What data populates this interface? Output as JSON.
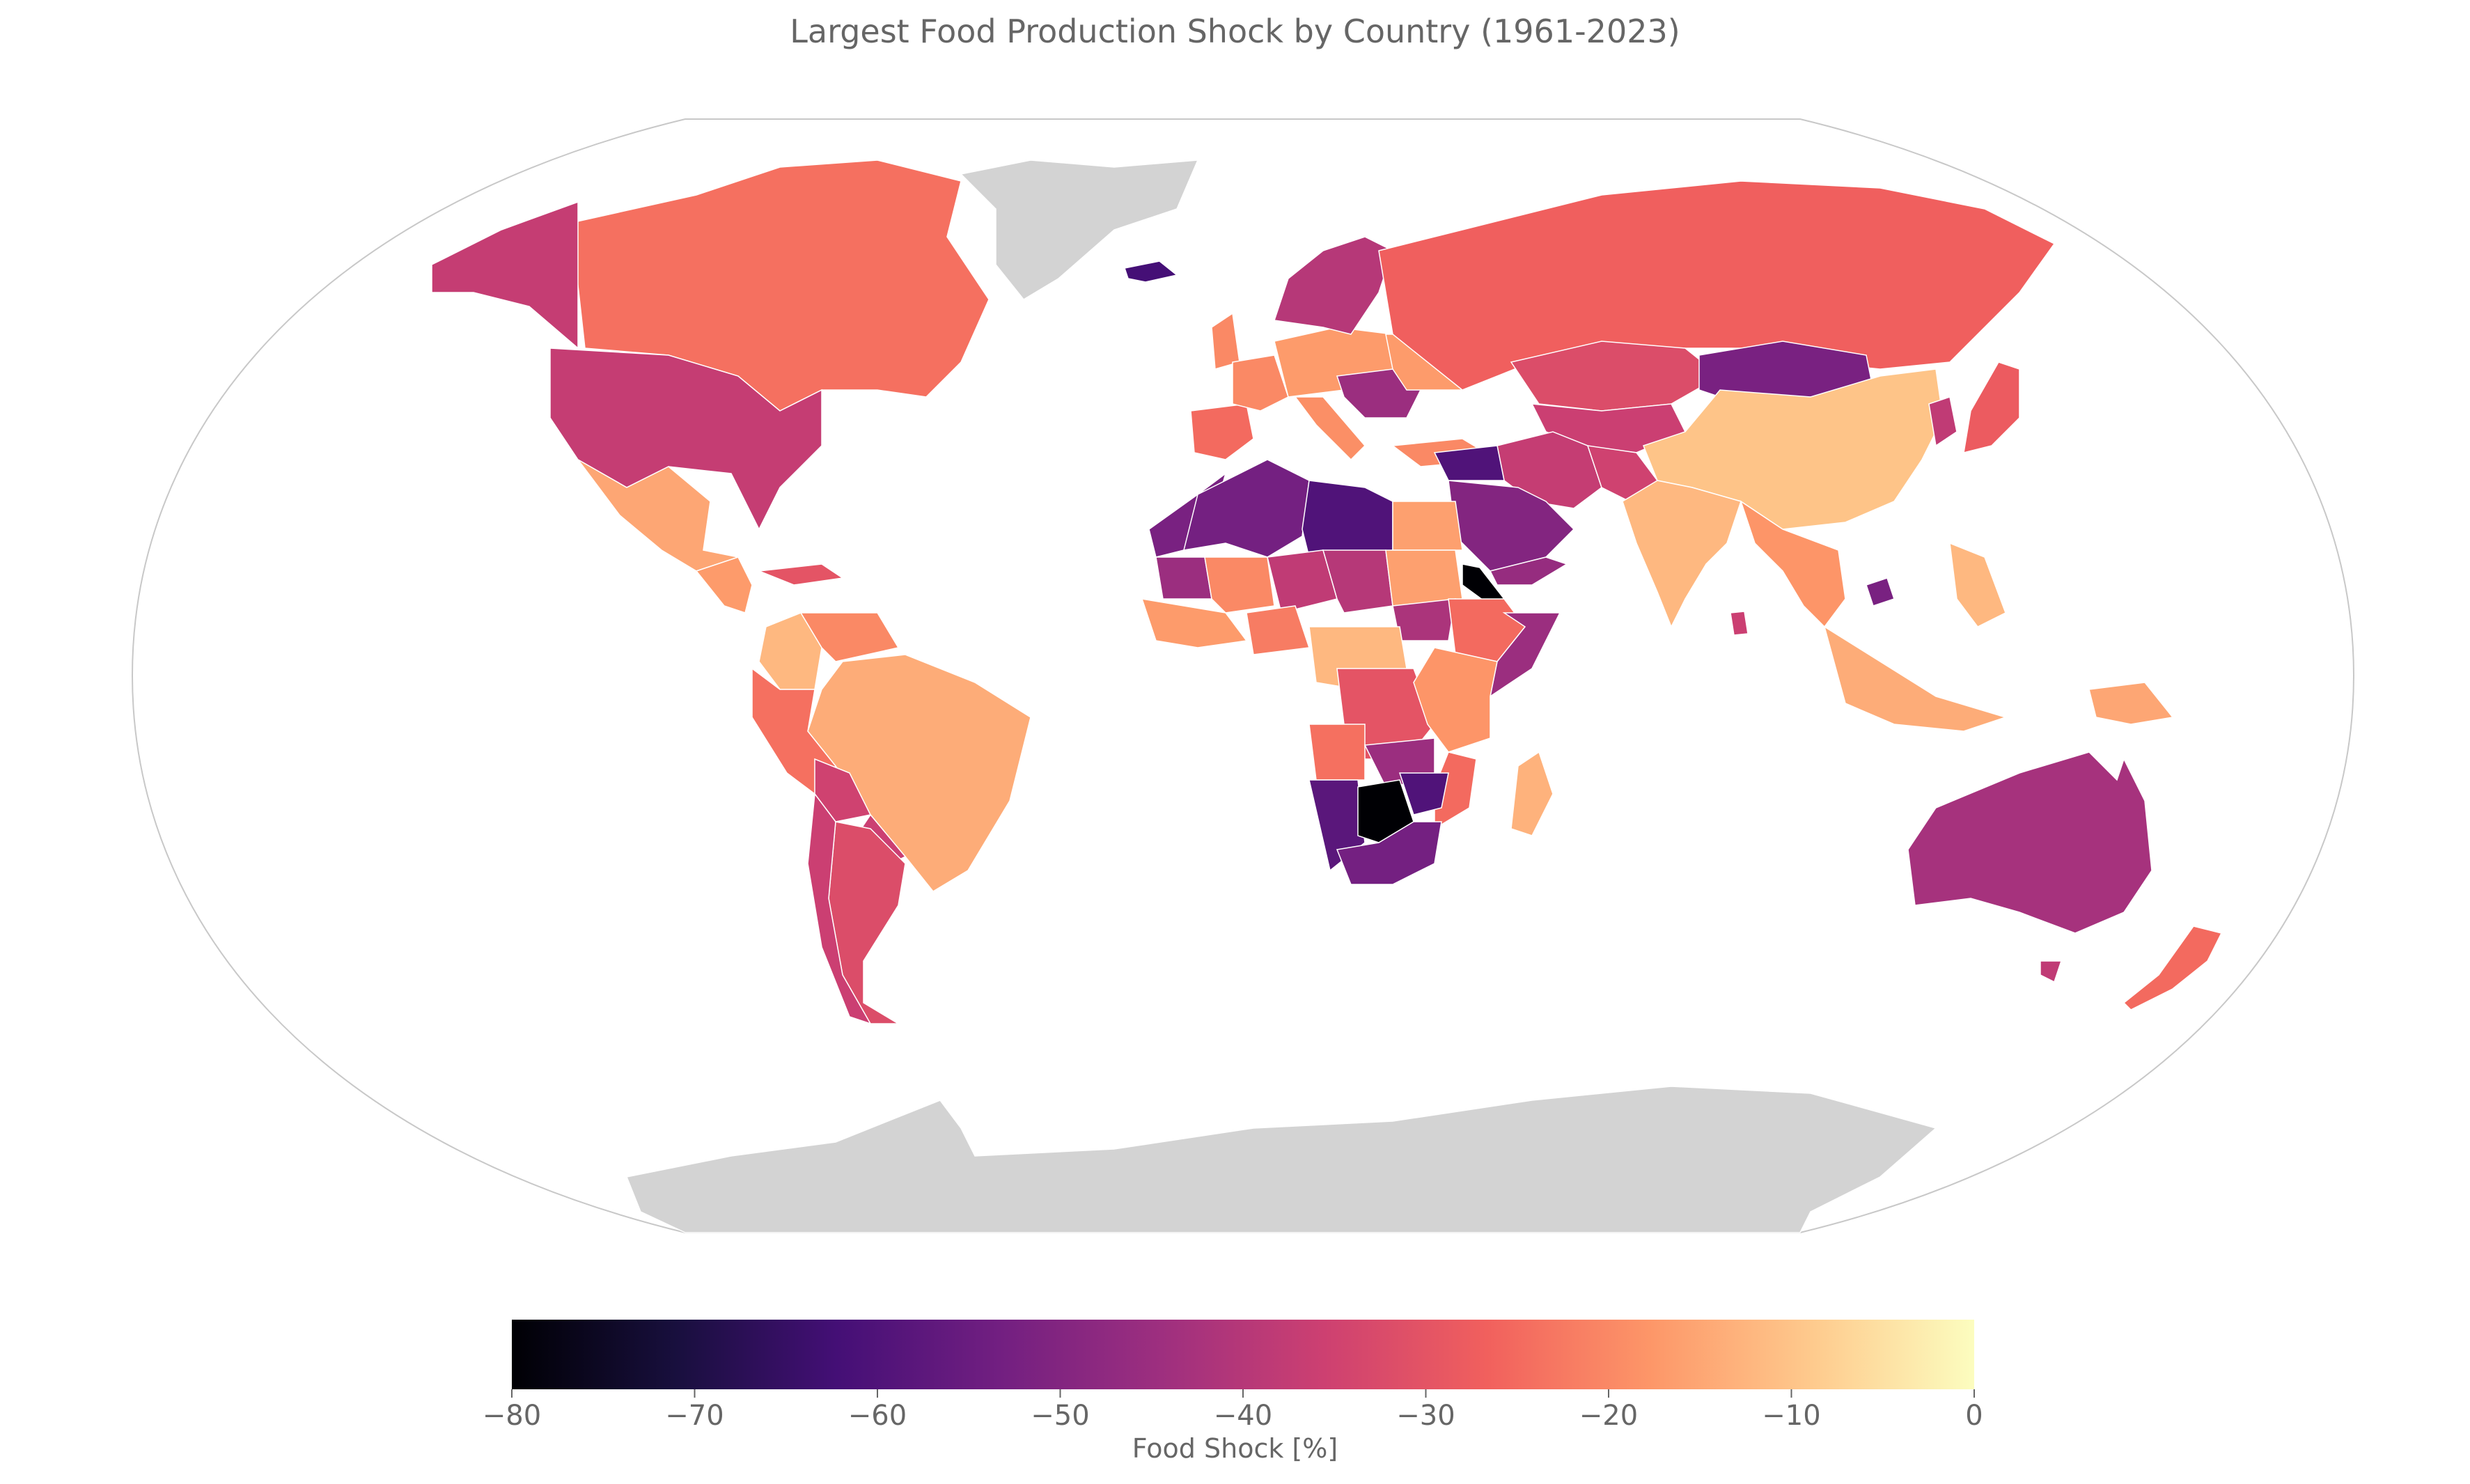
{
  "title": "Largest Food Production Shock by Country (1961-2023)",
  "colors": {
    "no_data": "#d3d3d3",
    "frame": "#c8c8c8",
    "text": "#666666",
    "colormap": "magma",
    "colormap_stops": [
      "#000004",
      "#180f3d",
      "#440f76",
      "#721f81",
      "#9e2f7f",
      "#cd4071",
      "#f1605d",
      "#fd9668",
      "#feca8d",
      "#fcfdbf"
    ]
  },
  "colorbar": {
    "label": "Food Shock [%]",
    "min": -80,
    "max": 0,
    "ticks": [
      "−80",
      "−70",
      "−60",
      "−50",
      "−40",
      "−30",
      "−20",
      "−10",
      "0"
    ]
  },
  "regions": [
    {
      "name": "Canada",
      "value": -24,
      "shape": "canada"
    },
    {
      "name": "Alaska (United States)",
      "value": -37,
      "shape": "alaska"
    },
    {
      "name": "United States",
      "value": -37,
      "shape": "usa"
    },
    {
      "name": "Mexico",
      "value": -15,
      "shape": "mexico"
    },
    {
      "name": "Central America",
      "value": -17,
      "shape": "central_america"
    },
    {
      "name": "Caribbean",
      "value": -30,
      "shape": "caribbean"
    },
    {
      "name": "Colombia",
      "value": -12,
      "shape": "colombia"
    },
    {
      "name": "Venezuela",
      "value": -20,
      "shape": "venezuela"
    },
    {
      "name": "Brazil",
      "value": -14,
      "shape": "brazil"
    },
    {
      "name": "Peru",
      "value": -24,
      "shape": "peru"
    },
    {
      "name": "Bolivia",
      "value": -35,
      "shape": "bolivia"
    },
    {
      "name": "Paraguay",
      "value": -36,
      "shape": "paraguay"
    },
    {
      "name": "Argentina",
      "value": -32,
      "shape": "argentina"
    },
    {
      "name": "Chile",
      "value": -36,
      "shape": "chile"
    },
    {
      "name": "Greenland",
      "value": null,
      "shape": "greenland"
    },
    {
      "name": "Iceland",
      "value": -62,
      "shape": "iceland"
    },
    {
      "name": "United Kingdom",
      "value": -20,
      "shape": "uk"
    },
    {
      "name": "Iberia",
      "value": -25,
      "shape": "iberia"
    },
    {
      "name": "France",
      "value": -20,
      "shape": "france"
    },
    {
      "name": "Central Europe",
      "value": -17,
      "shape": "central_europe"
    },
    {
      "name": "Scandinavia",
      "value": -40,
      "shape": "scandinavia"
    },
    {
      "name": "Eastern Europe",
      "value": -45,
      "shape": "eastern_europe"
    },
    {
      "name": "Italy",
      "value": -19,
      "shape": "italy"
    },
    {
      "name": "Ukraine",
      "value": -17,
      "shape": "ukraine"
    },
    {
      "name": "Turkey",
      "value": -20,
      "shape": "turkey"
    },
    {
      "name": "Russia",
      "value": -27,
      "shape": "russia"
    },
    {
      "name": "Kazakhstan",
      "value": -32,
      "shape": "kazakhstan"
    },
    {
      "name": "Central Asia",
      "value": -36,
      "shape": "central_asia"
    },
    {
      "name": "Mongolia",
      "value": -52,
      "shape": "mongolia"
    },
    {
      "name": "China",
      "value": -10,
      "shape": "china"
    },
    {
      "name": "Korea",
      "value": -38,
      "shape": "korea"
    },
    {
      "name": "Japan",
      "value": -28,
      "shape": "japan"
    },
    {
      "name": "Iran",
      "value": -37,
      "shape": "iran"
    },
    {
      "name": "Afghanistan & Pakistan",
      "value": -35,
      "shape": "afghanistan"
    },
    {
      "name": "Saudi Arabia",
      "value": -50,
      "shape": "saudi"
    },
    {
      "name": "Levant",
      "value": -60,
      "shape": "levant"
    },
    {
      "name": "Yemen",
      "value": -46,
      "shape": "yemen"
    },
    {
      "name": "India",
      "value": -12,
      "shape": "india"
    },
    {
      "name": "Sri Lanka",
      "value": -36,
      "shape": "sri_lanka"
    },
    {
      "name": "Southeast Asia",
      "value": -18,
      "shape": "se_asia"
    },
    {
      "name": "Cambodia",
      "value": -52,
      "shape": "cambodia"
    },
    {
      "name": "Indonesia",
      "value": -14,
      "shape": "indonesia"
    },
    {
      "name": "Philippines",
      "value": -12,
      "shape": "philippines"
    },
    {
      "name": "Papua New Guinea",
      "value": -15,
      "shape": "png"
    },
    {
      "name": "Australia",
      "value": -43,
      "shape": "australia"
    },
    {
      "name": "Tasmania",
      "value": -38,
      "shape": "tasmania"
    },
    {
      "name": "New Zealand",
      "value": -25,
      "shape": "new_zealand"
    },
    {
      "name": "Morocco & Western Sahara",
      "value": -52,
      "shape": "morocco"
    },
    {
      "name": "Algeria",
      "value": -53,
      "shape": "algeria"
    },
    {
      "name": "Libya",
      "value": -60,
      "shape": "libya"
    },
    {
      "name": "Egypt",
      "value": -16,
      "shape": "egypt"
    },
    {
      "name": "Mauritania",
      "value": -45,
      "shape": "mauritania"
    },
    {
      "name": "Mali",
      "value": -20,
      "shape": "mali"
    },
    {
      "name": "Niger",
      "value": -38,
      "shape": "niger"
    },
    {
      "name": "Chad",
      "value": -40,
      "shape": "chad"
    },
    {
      "name": "Sudan",
      "value": -16,
      "shape": "sudan"
    },
    {
      "name": "South Sudan",
      "value": -42,
      "shape": "south_sudan"
    },
    {
      "name": "Eritrea",
      "value": -80,
      "shape": "eritrea"
    },
    {
      "name": "Ethiopia",
      "value": -25,
      "shape": "ethiopia"
    },
    {
      "name": "Somalia",
      "value": -45,
      "shape": "somalia"
    },
    {
      "name": "West Africa",
      "value": -17,
      "shape": "west_africa"
    },
    {
      "name": "Nigeria",
      "value": -22,
      "shape": "nigeria"
    },
    {
      "name": "Central Africa",
      "value": -12,
      "shape": "central_africa"
    },
    {
      "name": "DR Congo",
      "value": -30,
      "shape": "drc"
    },
    {
      "name": "Kenya & Tanzania",
      "value": -18,
      "shape": "kenya"
    },
    {
      "name": "Angola",
      "value": -24,
      "shape": "angola"
    },
    {
      "name": "Zambia",
      "value": -45,
      "shape": "zambia"
    },
    {
      "name": "Mozambique",
      "value": -25,
      "shape": "mozambique"
    },
    {
      "name": "Namibia",
      "value": -58,
      "shape": "namibia"
    },
    {
      "name": "Botswana",
      "value": -80,
      "shape": "botswana"
    },
    {
      "name": "Zimbabwe",
      "value": -60,
      "shape": "zimbabwe"
    },
    {
      "name": "South Africa",
      "value": -53,
      "shape": "south_africa"
    },
    {
      "name": "Madagascar",
      "value": -13,
      "shape": "madagascar"
    },
    {
      "name": "Antarctica",
      "value": null,
      "shape": "antarctica"
    }
  ]
}
